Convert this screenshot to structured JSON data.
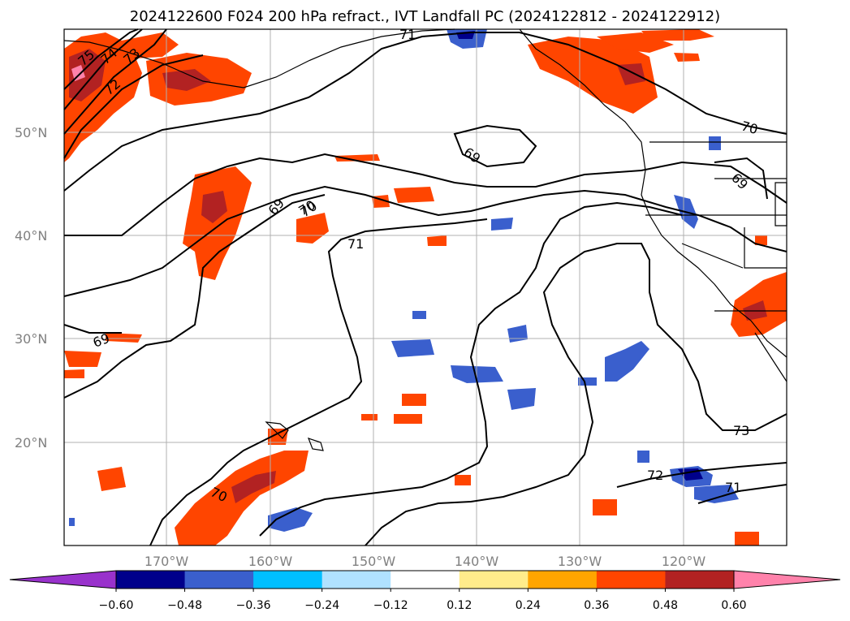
{
  "title": "2024122600 F024 200 hPa refract., IVT Landfall PC (2024122812 - 2024122912)",
  "lat_labels": [
    "50°N",
    "40°N",
    "30°N",
    "20°N"
  ],
  "lon_labels": [
    "170°W",
    "160°W",
    "150°W",
    "140°W",
    "130°W",
    "120°W"
  ],
  "contour_labels": [
    "75",
    "74",
    "73",
    "72",
    "71",
    "70",
    "69",
    "69",
    "70",
    "71",
    "69",
    "70",
    "69",
    "70",
    "72",
    "71",
    "73",
    "70"
  ],
  "colorbar": {
    "ticks": [
      "−0.60",
      "−0.48",
      "−0.36",
      "−0.24",
      "−0.12",
      "0.12",
      "0.24",
      "0.36",
      "0.48",
      "0.60"
    ],
    "colors": [
      "#9932cc",
      "#00008b",
      "#3a5fcd",
      "#00bfff",
      "#b0e2ff",
      "#ffffff",
      "#ffec8b",
      "#ffa500",
      "#ff4500",
      "#b22222",
      "#ff82ab"
    ]
  }
}
